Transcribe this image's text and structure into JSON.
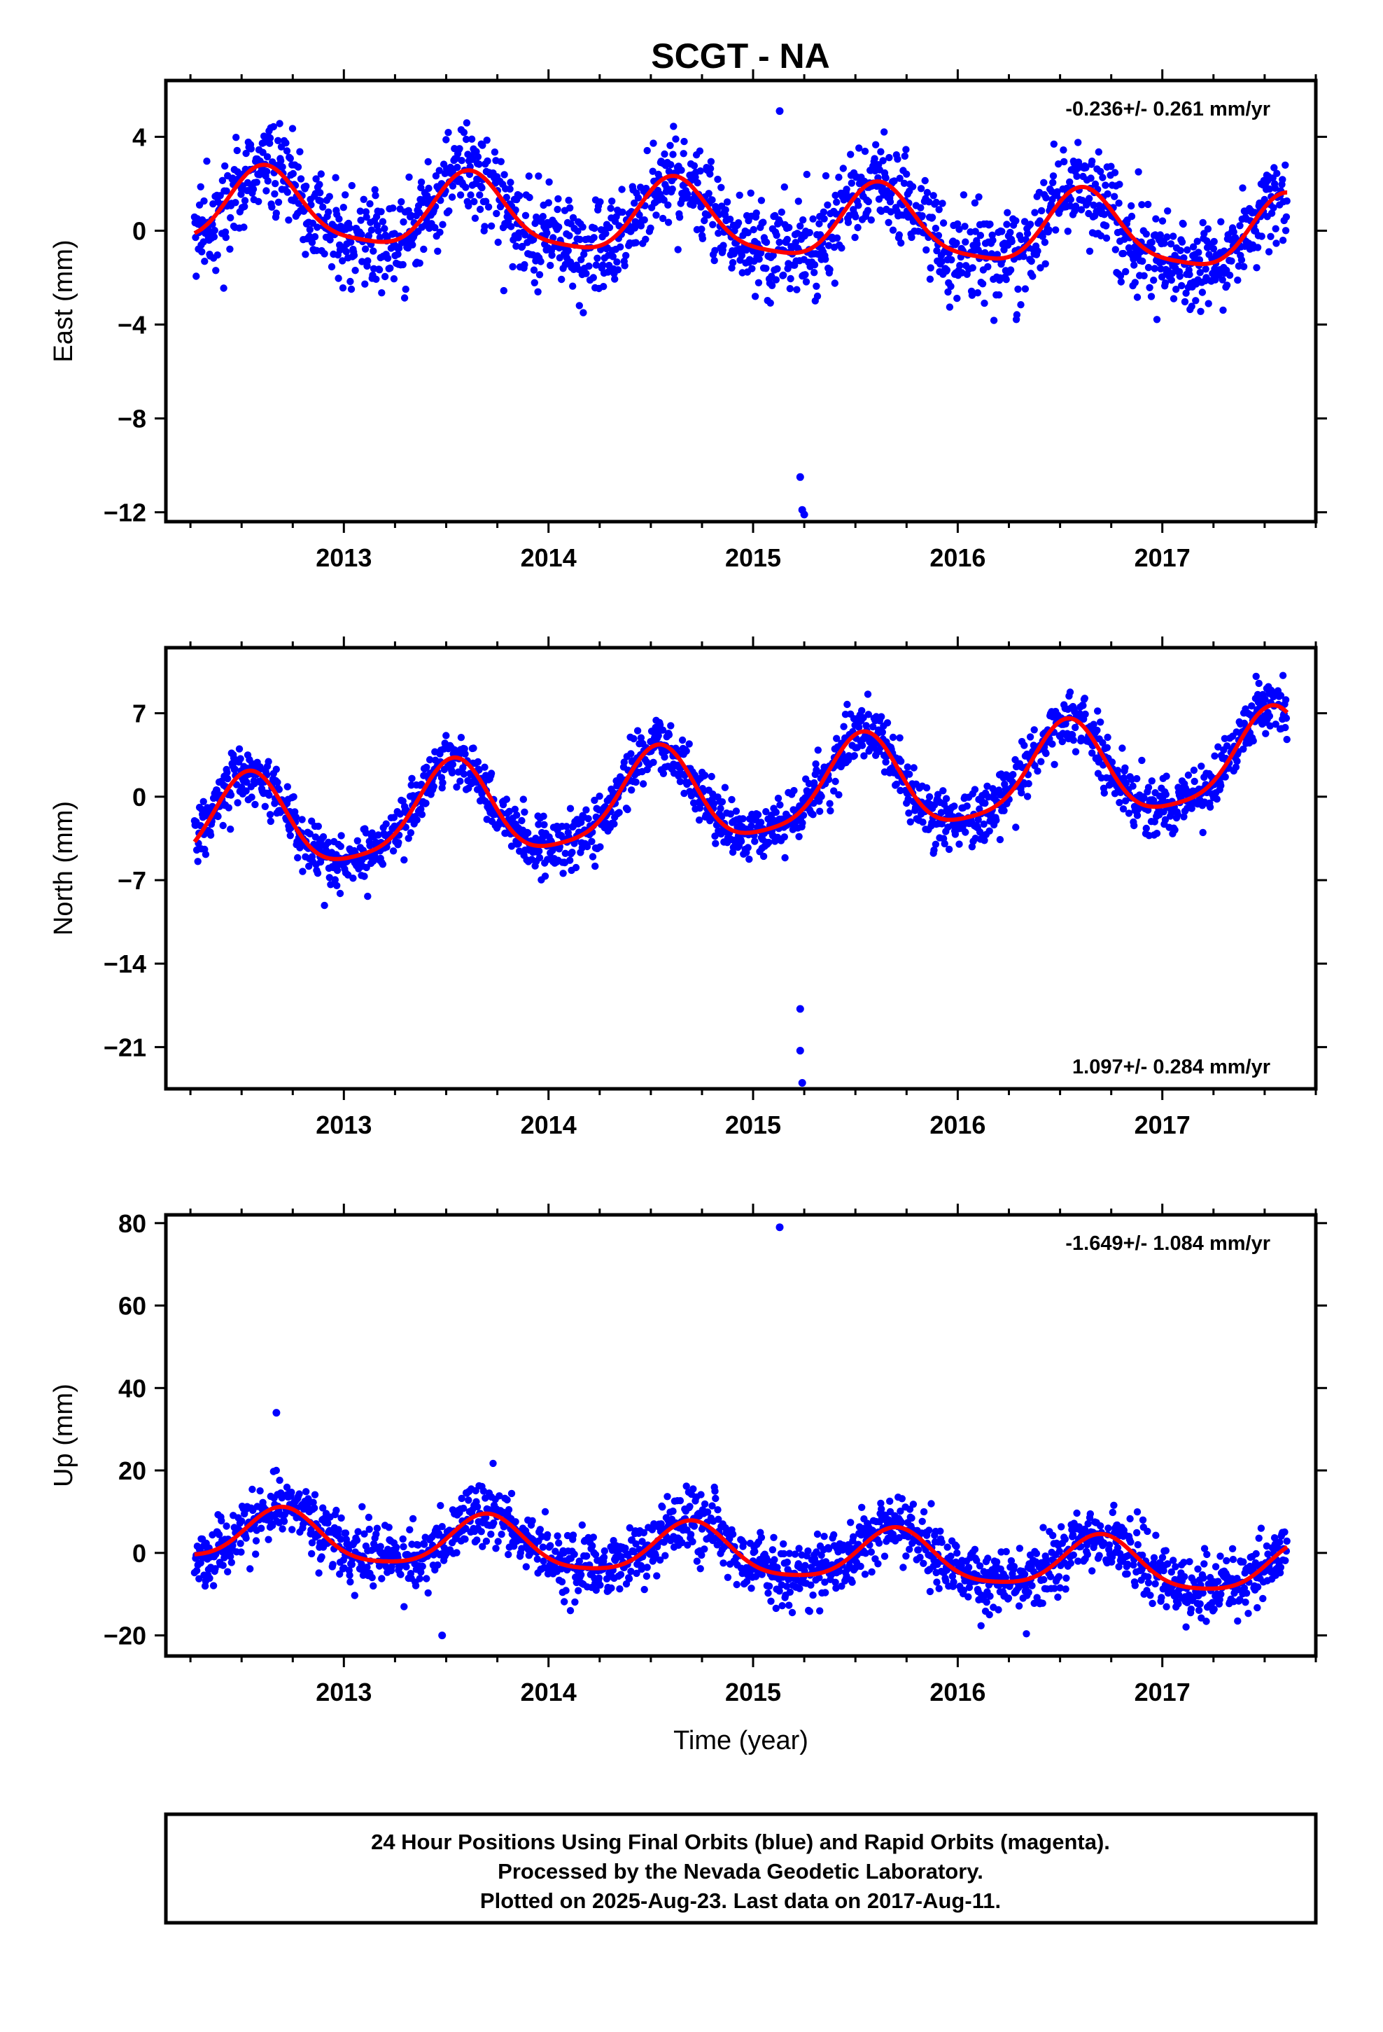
{
  "title": "SCGT - NA",
  "caption": {
    "line1": "24 Hour Positions Using Final Orbits (blue) and Rapid Orbits (magenta).",
    "line2": "Processed by the Nevada Geodetic Laboratory.",
    "line3": "Plotted on 2025-Aug-23. Last data on 2017-Aug-11."
  },
  "colors": {
    "final_orbits": "#0000ff",
    "fit": "#ff0000",
    "frame": "#000000"
  },
  "chart_data": [
    {
      "type": "scatter",
      "component": "east",
      "ylabel": "East (mm)",
      "xlabel": "",
      "rate_label": "-0.236+/- 0.261 mm/yr",
      "rate_position": "top-right",
      "xlim": [
        2012.13,
        2017.75
      ],
      "ylim": [
        -12.4,
        6.4
      ],
      "xticks": [
        2013,
        2014,
        2015,
        2016,
        2017
      ],
      "xtick_labels": [
        "2013",
        "2014",
        "2015",
        "2016",
        "2017"
      ],
      "yticks": [
        4,
        0,
        -4,
        -8,
        -12
      ],
      "ytick_labels": [
        "4",
        "0",
        "−4",
        "−8",
        "−12"
      ],
      "grid": false,
      "data_range": [
        2012.27,
        2017.61
      ],
      "model": {
        "mean": 0.35,
        "rate_mm_yr": -0.236,
        "t0": 2015.0,
        "annual_amp": 1.55,
        "annual_peak": 2012.62,
        "semiannual_amp": 0.35,
        "semiannual_peak": 2012.6,
        "noise_sd": 1.0
      },
      "outliers": [
        {
          "x": 2015.23,
          "y": -10.5
        },
        {
          "x": 2015.24,
          "y": -11.9
        },
        {
          "x": 2015.25,
          "y": -12.1
        },
        {
          "x": 2015.13,
          "y": 5.1
        }
      ]
    },
    {
      "type": "scatter",
      "component": "north",
      "ylabel": "North (mm)",
      "xlabel": "",
      "rate_label": "1.097+/- 0.284 mm/yr",
      "rate_position": "bottom-right",
      "xlim": [
        2012.13,
        2017.75
      ],
      "ylim": [
        -24.5,
        12.5
      ],
      "xticks": [
        2013,
        2014,
        2015,
        2016,
        2017
      ],
      "xtick_labels": [
        "2013",
        "2014",
        "2015",
        "2016",
        "2017"
      ],
      "yticks": [
        7,
        0,
        -7,
        -14,
        -21
      ],
      "ytick_labels": [
        "7",
        "0",
        "−7",
        "−14",
        "−21"
      ],
      "grid": false,
      "data_range": [
        2012.27,
        2017.61
      ],
      "model": {
        "mean": 0.2,
        "rate_mm_yr": 1.097,
        "t0": 2015.0,
        "annual_amp": 3.9,
        "annual_peak": 2012.53,
        "semiannual_amp": 0.8,
        "semiannual_peak": 2012.55,
        "noise_sd": 1.15
      },
      "outliers": [
        {
          "x": 2015.23,
          "y": -17.8
        },
        {
          "x": 2015.23,
          "y": -21.3
        },
        {
          "x": 2015.24,
          "y": -24.0
        }
      ]
    },
    {
      "type": "scatter",
      "component": "up",
      "ylabel": "Up (mm)",
      "xlabel": "Time (year)",
      "rate_label": "-1.649+/- 1.084 mm/yr",
      "rate_position": "top-right",
      "xlim": [
        2012.13,
        2017.75
      ],
      "ylim": [
        -25,
        82
      ],
      "xticks": [
        2013,
        2014,
        2015,
        2016,
        2017
      ],
      "xtick_labels": [
        "2013",
        "2014",
        "2015",
        "2016",
        "2017"
      ],
      "yticks": [
        80,
        60,
        40,
        20,
        0,
        -20
      ],
      "ytick_labels": [
        "80",
        "60",
        "40",
        "20",
        "0",
        "−20"
      ],
      "grid": false,
      "data_range": [
        2012.27,
        2017.61
      ],
      "model": {
        "mean": 0.0,
        "rate_mm_yr": -1.649,
        "t0": 2015.0,
        "annual_amp": 6.2,
        "annual_peak": 2012.7,
        "semiannual_amp": 1.2,
        "semiannual_peak": 2012.7,
        "noise_sd": 3.8
      },
      "outliers": [
        {
          "x": 2015.13,
          "y": 79
        },
        {
          "x": 2013.48,
          "y": -20
        },
        {
          "x": 2012.67,
          "y": 34
        }
      ]
    }
  ]
}
